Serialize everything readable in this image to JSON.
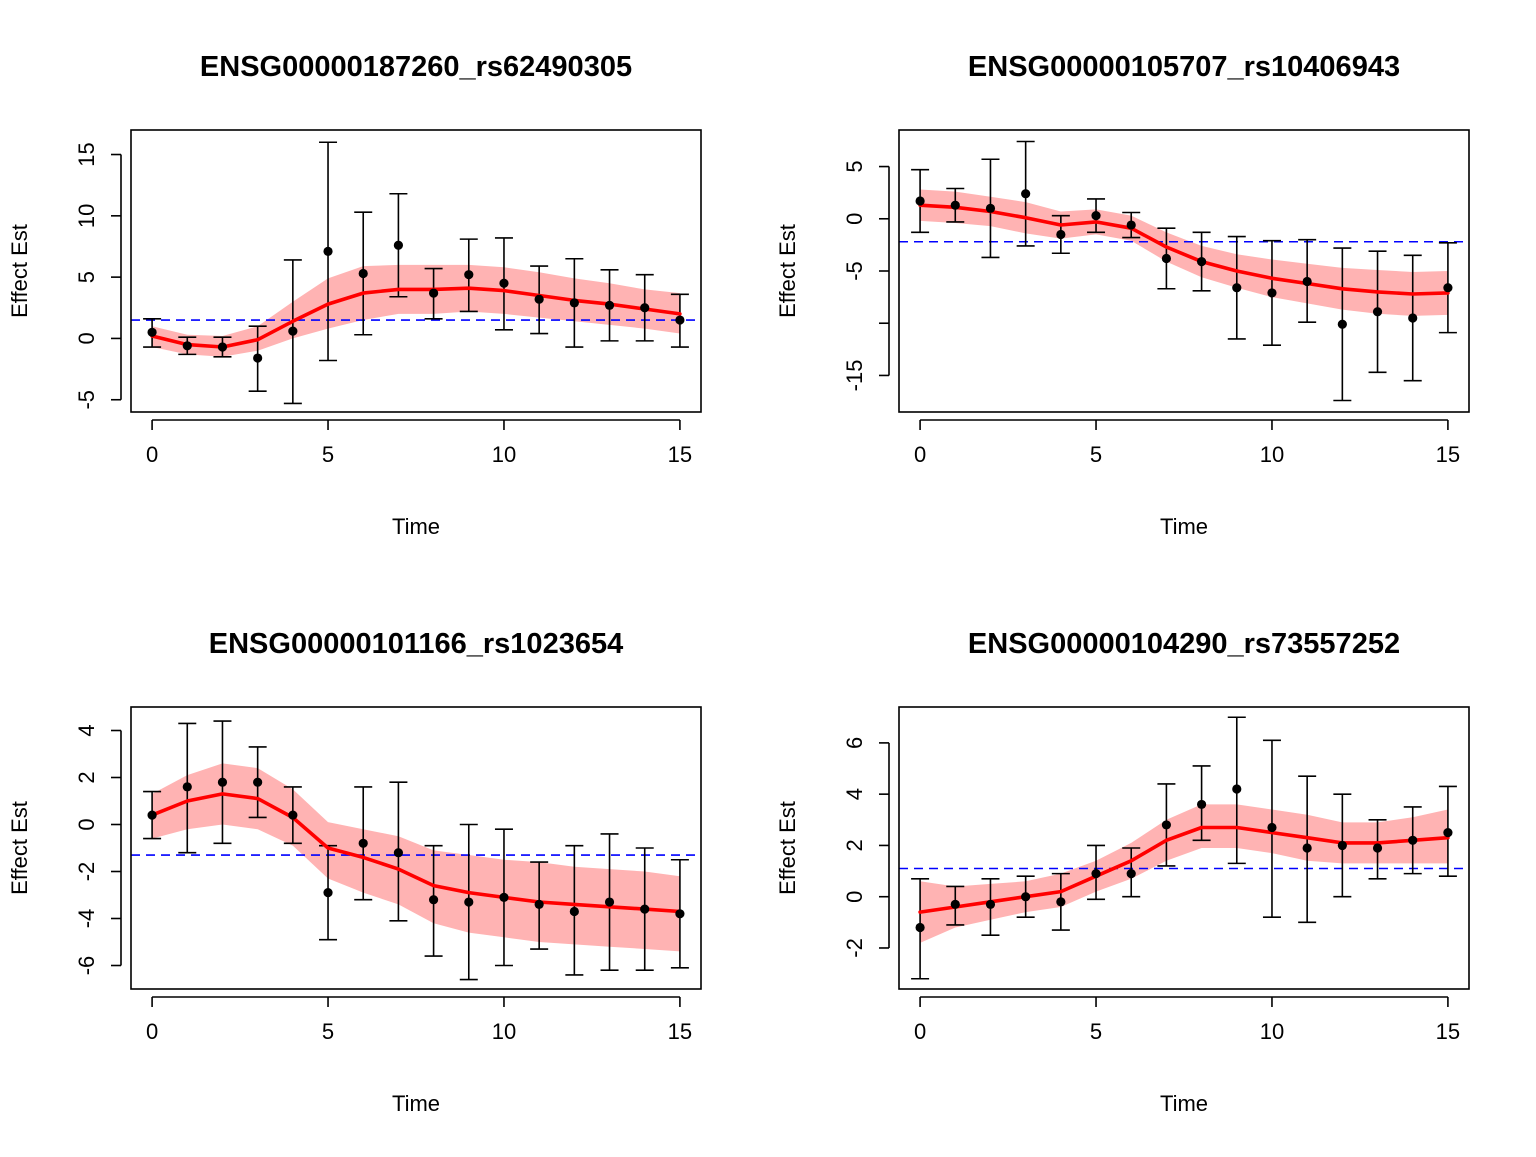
{
  "figure": {
    "colors": {
      "band": "#ffb3b3",
      "smooth_line": "#ff0000",
      "reference_line": "#0000ff",
      "points": "#000000"
    }
  },
  "chart_data": [
    {
      "type": "line",
      "title": "ENSG00000187260_rs62490305",
      "xlabel": "Time",
      "ylabel": "Effect Est",
      "xlim": [
        0,
        15
      ],
      "ylim": [
        -6,
        17
      ],
      "xticks": [
        0,
        5,
        10,
        15
      ],
      "yticks": [
        -5,
        0,
        5,
        10,
        15
      ],
      "reference_line": 1.5,
      "series": [
        {
          "name": "estimate",
          "x": [
            0,
            1,
            2,
            3,
            4,
            5,
            6,
            7,
            8,
            9,
            10,
            11,
            12,
            13,
            14,
            15
          ],
          "values": [
            0.5,
            -0.6,
            -0.7,
            -1.6,
            0.6,
            7.1,
            5.3,
            7.6,
            3.7,
            5.2,
            4.5,
            3.2,
            2.9,
            2.7,
            2.5,
            1.5
          ]
        },
        {
          "name": "upper",
          "values": [
            1.6,
            0.1,
            0.1,
            1.0,
            6.4,
            16.0,
            10.3,
            11.8,
            5.7,
            8.1,
            8.2,
            5.9,
            6.5,
            5.6,
            5.2,
            3.6
          ]
        },
        {
          "name": "lower",
          "values": [
            -0.7,
            -1.3,
            -1.5,
            -4.3,
            -5.3,
            -1.8,
            0.3,
            3.4,
            1.6,
            2.2,
            0.7,
            0.4,
            -0.7,
            -0.2,
            -0.2,
            -0.7
          ]
        }
      ],
      "smooth": {
        "x": [
          0,
          1,
          2,
          3,
          4,
          5,
          6,
          7,
          8,
          9,
          10,
          11,
          12,
          13,
          14,
          15
        ],
        "y": [
          0.2,
          -0.5,
          -0.7,
          -0.1,
          1.4,
          2.8,
          3.7,
          4.0,
          4.0,
          4.1,
          3.9,
          3.5,
          3.1,
          2.8,
          2.4,
          2.0
        ],
        "band_lower": [
          -0.7,
          -1.3,
          -1.5,
          -1.0,
          0.0,
          0.8,
          1.5,
          2.0,
          2.0,
          2.2,
          2.0,
          1.7,
          1.4,
          1.1,
          0.8,
          0.4
        ],
        "band_upper": [
          1.0,
          0.3,
          0.2,
          1.0,
          3.0,
          4.9,
          5.9,
          6.0,
          6.0,
          6.0,
          5.8,
          5.4,
          4.9,
          4.5,
          4.0,
          3.7
        ]
      }
    },
    {
      "type": "line",
      "title": "ENSG00000105707_rs10406943",
      "xlabel": "Time",
      "ylabel": "Effect Est",
      "xlim": [
        0,
        15
      ],
      "ylim": [
        -18.5,
        8.5
      ],
      "xticks": [
        0,
        5,
        10,
        15
      ],
      "yticks": [
        -15,
        -10,
        -5,
        0,
        5
      ],
      "ytick_labels": [
        "-15",
        "",
        "-5",
        "0",
        "5"
      ],
      "reference_line": -2.2,
      "series": [
        {
          "name": "estimate",
          "x": [
            0,
            1,
            2,
            3,
            4,
            5,
            6,
            7,
            8,
            9,
            10,
            11,
            12,
            13,
            14,
            15
          ],
          "values": [
            1.7,
            1.3,
            1.0,
            2.4,
            -1.5,
            0.3,
            -0.6,
            -3.8,
            -4.1,
            -6.6,
            -7.1,
            -6.0,
            -10.1,
            -8.9,
            -9.5,
            -6.6
          ]
        },
        {
          "name": "upper",
          "values": [
            4.7,
            2.9,
            5.7,
            7.4,
            0.3,
            1.9,
            0.6,
            -0.9,
            -1.3,
            -1.7,
            -2.1,
            -2.0,
            -2.8,
            -3.1,
            -3.5,
            -2.3
          ]
        },
        {
          "name": "lower",
          "values": [
            -1.3,
            -0.3,
            -3.7,
            -2.6,
            -3.3,
            -1.3,
            -1.8,
            -6.7,
            -6.9,
            -11.5,
            -12.1,
            -9.9,
            -17.4,
            -14.7,
            -15.5,
            -10.9
          ]
        }
      ],
      "smooth": {
        "x": [
          0,
          1,
          2,
          3,
          4,
          5,
          6,
          7,
          8,
          9,
          10,
          11,
          12,
          13,
          14,
          15
        ],
        "y": [
          1.3,
          1.1,
          0.7,
          0.1,
          -0.6,
          -0.3,
          -0.9,
          -2.7,
          -4.1,
          -5.0,
          -5.7,
          -6.2,
          -6.7,
          -7.0,
          -7.2,
          -7.1
        ],
        "band_lower": [
          -0.2,
          -0.4,
          -0.7,
          -1.4,
          -1.9,
          -1.5,
          -2.1,
          -4.1,
          -5.6,
          -6.6,
          -7.5,
          -8.1,
          -8.7,
          -9.1,
          -9.3,
          -9.2
        ],
        "band_upper": [
          2.8,
          2.6,
          2.1,
          1.6,
          0.7,
          0.9,
          0.3,
          -1.3,
          -2.6,
          -3.4,
          -3.9,
          -4.3,
          -4.7,
          -4.9,
          -5.1,
          -5.0
        ]
      }
    },
    {
      "type": "line",
      "title": "ENSG00000101166_rs1023654",
      "xlabel": "Time",
      "ylabel": "Effect Est",
      "xlim": [
        0,
        15
      ],
      "ylim": [
        -7,
        5
      ],
      "xticks": [
        0,
        5,
        10,
        15
      ],
      "yticks": [
        -6,
        -4,
        -2,
        0,
        2,
        4
      ],
      "reference_line": -1.3,
      "series": [
        {
          "name": "estimate",
          "x": [
            0,
            1,
            2,
            3,
            4,
            5,
            6,
            7,
            8,
            9,
            10,
            11,
            12,
            13,
            14,
            15
          ],
          "values": [
            0.4,
            1.6,
            1.8,
            1.8,
            0.4,
            -2.9,
            -0.8,
            -1.2,
            -3.2,
            -3.3,
            -3.1,
            -3.4,
            -3.7,
            -3.3,
            -3.6,
            -3.8
          ]
        },
        {
          "name": "upper",
          "values": [
            1.4,
            4.3,
            4.4,
            3.3,
            1.6,
            -0.9,
            1.6,
            1.8,
            -0.9,
            0.0,
            -0.2,
            -1.6,
            -0.9,
            -0.4,
            -1.0,
            -1.5
          ]
        },
        {
          "name": "lower",
          "values": [
            -0.6,
            -1.2,
            -0.8,
            0.3,
            -0.8,
            -4.9,
            -3.2,
            -4.1,
            -5.6,
            -6.6,
            -6.0,
            -5.3,
            -6.4,
            -6.2,
            -6.2,
            -6.1
          ]
        }
      ],
      "smooth": {
        "x": [
          0,
          1,
          2,
          3,
          4,
          5,
          6,
          7,
          8,
          9,
          10,
          11,
          12,
          13,
          14,
          15
        ],
        "y": [
          0.4,
          1.0,
          1.3,
          1.1,
          0.3,
          -1.0,
          -1.4,
          -1.9,
          -2.6,
          -2.9,
          -3.1,
          -3.3,
          -3.4,
          -3.5,
          -3.6,
          -3.7
        ],
        "band_lower": [
          -0.6,
          -0.2,
          0.0,
          -0.2,
          -0.9,
          -2.3,
          -2.9,
          -3.4,
          -4.2,
          -4.6,
          -4.8,
          -5.0,
          -5.1,
          -5.2,
          -5.3,
          -5.4
        ],
        "band_upper": [
          1.3,
          2.1,
          2.6,
          2.4,
          1.5,
          0.1,
          -0.2,
          -0.5,
          -1.1,
          -1.3,
          -1.5,
          -1.6,
          -1.8,
          -1.9,
          -2.0,
          -2.2
        ]
      }
    },
    {
      "type": "line",
      "title": "ENSG00000104290_rs73557252",
      "xlabel": "Time",
      "ylabel": "Effect Est",
      "xlim": [
        0,
        15
      ],
      "ylim": [
        -3.6,
        7.4
      ],
      "xticks": [
        0,
        5,
        10,
        15
      ],
      "yticks": [
        -2,
        0,
        2,
        4,
        6
      ],
      "reference_line": 1.1,
      "series": [
        {
          "name": "estimate",
          "x": [
            0,
            1,
            2,
            3,
            4,
            5,
            6,
            7,
            8,
            9,
            10,
            11,
            12,
            13,
            14,
            15
          ],
          "values": [
            -1.2,
            -0.3,
            -0.3,
            0.0,
            -0.2,
            0.9,
            0.9,
            2.8,
            3.6,
            4.2,
            2.7,
            1.9,
            2.0,
            1.9,
            2.2,
            2.5
          ]
        },
        {
          "name": "upper",
          "values": [
            0.7,
            0.4,
            0.7,
            0.8,
            0.9,
            2.0,
            1.9,
            4.4,
            5.1,
            7.0,
            6.1,
            4.7,
            4.0,
            3.0,
            3.5,
            4.3
          ]
        },
        {
          "name": "lower",
          "values": [
            -3.2,
            -1.1,
            -1.5,
            -0.8,
            -1.3,
            -0.1,
            0.0,
            1.2,
            2.2,
            1.3,
            -0.8,
            -1.0,
            0.0,
            0.7,
            0.9,
            0.8
          ]
        }
      ],
      "smooth": {
        "x": [
          0,
          1,
          2,
          3,
          4,
          5,
          6,
          7,
          8,
          9,
          10,
          11,
          12,
          13,
          14,
          15
        ],
        "y": [
          -0.6,
          -0.4,
          -0.2,
          0.0,
          0.2,
          0.8,
          1.4,
          2.2,
          2.7,
          2.7,
          2.5,
          2.3,
          2.1,
          2.1,
          2.2,
          2.3
        ],
        "band_lower": [
          -1.8,
          -1.2,
          -0.9,
          -0.6,
          -0.4,
          0.2,
          0.7,
          1.4,
          1.9,
          1.9,
          1.7,
          1.4,
          1.3,
          1.3,
          1.3,
          1.3
        ],
        "band_upper": [
          0.6,
          0.4,
          0.5,
          0.6,
          0.9,
          1.4,
          2.1,
          3.0,
          3.6,
          3.6,
          3.4,
          3.2,
          2.9,
          2.9,
          3.1,
          3.4
        ]
      }
    }
  ]
}
